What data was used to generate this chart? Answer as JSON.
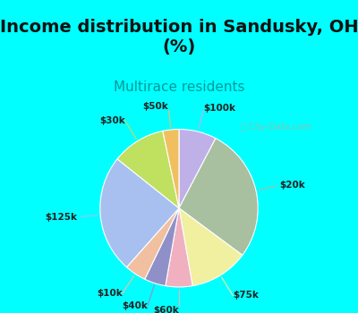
{
  "title": "Income distribution in Sandusky, OH\n(%)",
  "subtitle": "Multirace residents",
  "bg_cyan": "#00FFFF",
  "bg_chart_top": "#e8f8f0",
  "bg_chart_bottom": "#c8e8d0",
  "watermark": "⧗ City-Data.com",
  "labels": [
    "$100k",
    "$20k",
    "$75k",
    "$60k",
    "$40k",
    "$10k",
    "$125k",
    "$30k",
    "$50k"
  ],
  "values": [
    7,
    25,
    11,
    5,
    4,
    4,
    22,
    10,
    3
  ],
  "colors": [
    "#c0b0e8",
    "#a8bfa0",
    "#f0f0a0",
    "#f0b0c0",
    "#9090c8",
    "#f0c0a0",
    "#a8c0f0",
    "#c0e060",
    "#f0c060"
  ],
  "startangle": 90,
  "title_fontsize": 14,
  "subtitle_fontsize": 11,
  "label_fontsize": 7.5
}
